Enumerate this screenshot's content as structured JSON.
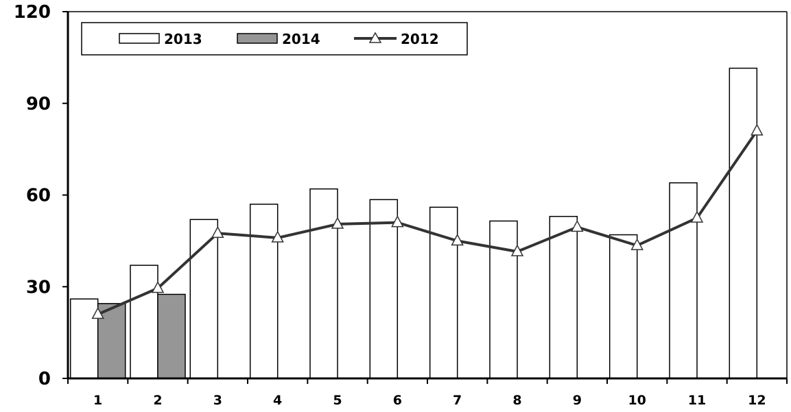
{
  "chart_data": {
    "type": "bar",
    "categories": [
      "1",
      "2",
      "3",
      "4",
      "5",
      "6",
      "7",
      "8",
      "9",
      "10",
      "11",
      "12"
    ],
    "series": [
      {
        "name": "2013",
        "kind": "bar",
        "color": "#ffffff",
        "values": [
          26,
          37,
          52,
          57,
          62,
          58.5,
          56,
          51.5,
          53,
          47,
          64,
          101.5
        ]
      },
      {
        "name": "2014",
        "kind": "bar",
        "color": "#969696",
        "values": [
          24.5,
          27.5,
          null,
          null,
          null,
          null,
          null,
          null,
          null,
          null,
          null,
          null
        ]
      },
      {
        "name": "2012",
        "kind": "line",
        "color": "#333333",
        "marker": "triangle",
        "values": [
          21,
          29.5,
          47.5,
          46,
          50.5,
          51,
          45,
          41.5,
          49.5,
          43.5,
          52.5,
          81
        ]
      }
    ],
    "yticks": [
      "0",
      "30",
      "60",
      "90",
      "120"
    ],
    "ylim": [
      0,
      120
    ],
    "legend_order": [
      "2013",
      "2014",
      "2012"
    ],
    "legend_position": "top-left",
    "grid": false
  }
}
